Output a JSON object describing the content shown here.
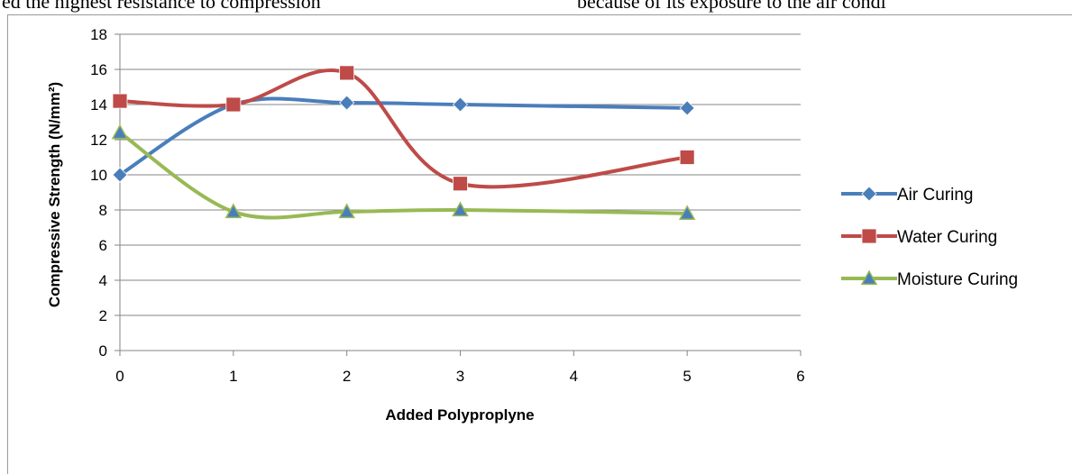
{
  "page_text": {
    "top_left": "ed the highest resistance to compression",
    "top_right": "because of its exposure to the air condi"
  },
  "chart_data": {
    "type": "line",
    "title": "",
    "xlabel": "Added Polyproplyne",
    "ylabel": "Compressive Strength (N/mm²)",
    "xlim": [
      0,
      6
    ],
    "ylim": [
      0,
      18
    ],
    "xticks": [
      0,
      1,
      2,
      3,
      4,
      5,
      6
    ],
    "yticks": [
      0,
      2,
      4,
      6,
      8,
      10,
      12,
      14,
      16,
      18
    ],
    "grid": "horizontal",
    "legend_position": "right",
    "series": [
      {
        "name": "Air Curing",
        "color": "#4a7ebb",
        "marker": "diamond",
        "x": [
          0,
          1,
          2,
          3,
          5
        ],
        "y": [
          10,
          14,
          14.1,
          14,
          13.8
        ]
      },
      {
        "name": "Water Curing",
        "color": "#be4b48",
        "marker": "square",
        "x": [
          0,
          1,
          2,
          3,
          5
        ],
        "y": [
          14.2,
          14,
          15.8,
          9.5,
          11
        ]
      },
      {
        "name": "Moisture Curing",
        "color": "#98b954",
        "marker": "triangle",
        "x": [
          0,
          1,
          2,
          3,
          5
        ],
        "y": [
          12.4,
          7.9,
          7.9,
          8,
          7.8
        ]
      }
    ]
  }
}
